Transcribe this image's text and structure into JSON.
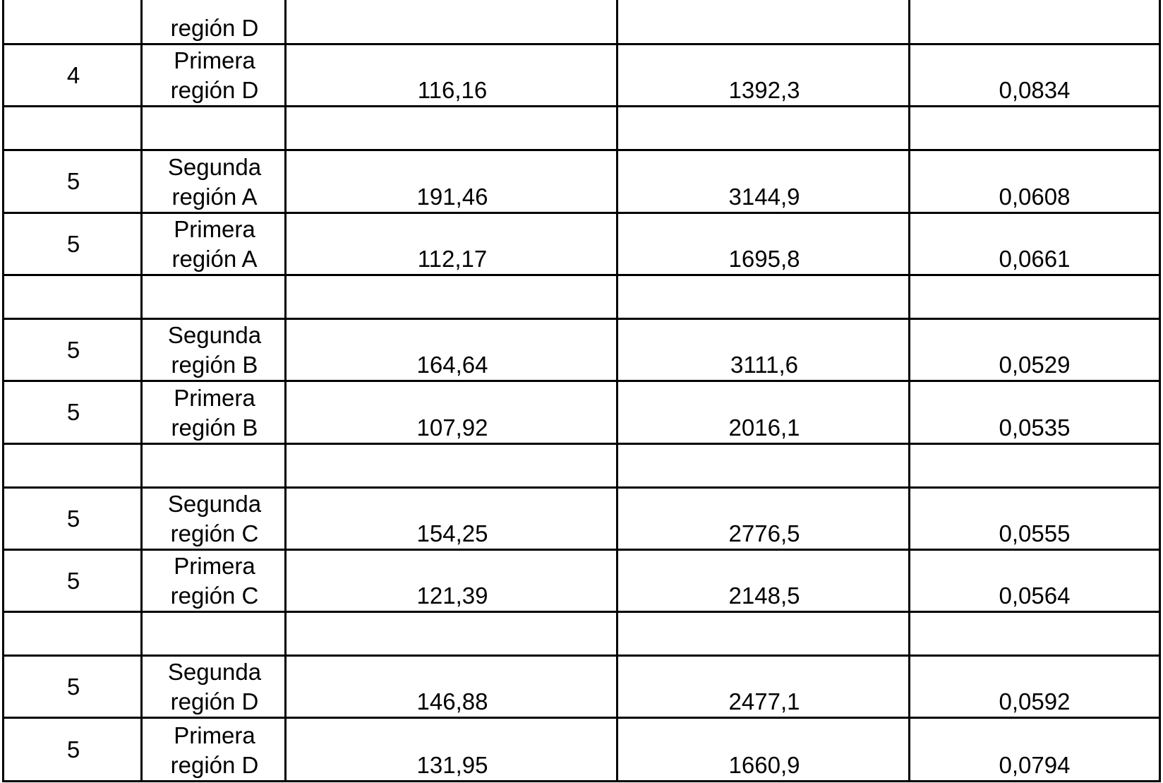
{
  "table": {
    "rows": [
      {
        "n": "",
        "region": [
          "región D"
        ],
        "v1": "",
        "v2": "",
        "v3": ""
      },
      {
        "n": "4",
        "region": [
          "Primera",
          "región D"
        ],
        "v1": "116,16",
        "v2": "1392,3",
        "v3": "0,0834"
      },
      {
        "n": "",
        "region": [],
        "v1": "",
        "v2": "",
        "v3": ""
      },
      {
        "n": "5",
        "region": [
          "Segunda",
          "región A"
        ],
        "v1": "191,46",
        "v2": "3144,9",
        "v3": "0,0608"
      },
      {
        "n": "5",
        "region": [
          "Primera",
          "región A"
        ],
        "v1": "112,17",
        "v2": "1695,8",
        "v3": "0,0661"
      },
      {
        "n": "",
        "region": [],
        "v1": "",
        "v2": "",
        "v3": ""
      },
      {
        "n": "5",
        "region": [
          "Segunda",
          "región B"
        ],
        "v1": "164,64",
        "v2": "3111,6",
        "v3": "0,0529"
      },
      {
        "n": "5",
        "region": [
          "Primera",
          "región B"
        ],
        "v1": "107,92",
        "v2": "2016,1",
        "v3": "0,0535"
      },
      {
        "n": "",
        "region": [],
        "v1": "",
        "v2": "",
        "v3": ""
      },
      {
        "n": "5",
        "region": [
          "Segunda",
          "región C"
        ],
        "v1": "154,25",
        "v2": "2776,5",
        "v3": "0,0555"
      },
      {
        "n": "5",
        "region": [
          "Primera",
          "región C"
        ],
        "v1": "121,39",
        "v2": "2148,5",
        "v3": "0,0564"
      },
      {
        "n": "",
        "region": [],
        "v1": "",
        "v2": "",
        "v3": ""
      },
      {
        "n": "5",
        "region": [
          "Segunda",
          "región D"
        ],
        "v1": "146,88",
        "v2": "2477,1",
        "v3": "0,0592"
      },
      {
        "n": "5",
        "region": [
          "Primera",
          "región D"
        ],
        "v1": "131,95",
        "v2": "1660,9",
        "v3": "0,0794"
      }
    ]
  }
}
